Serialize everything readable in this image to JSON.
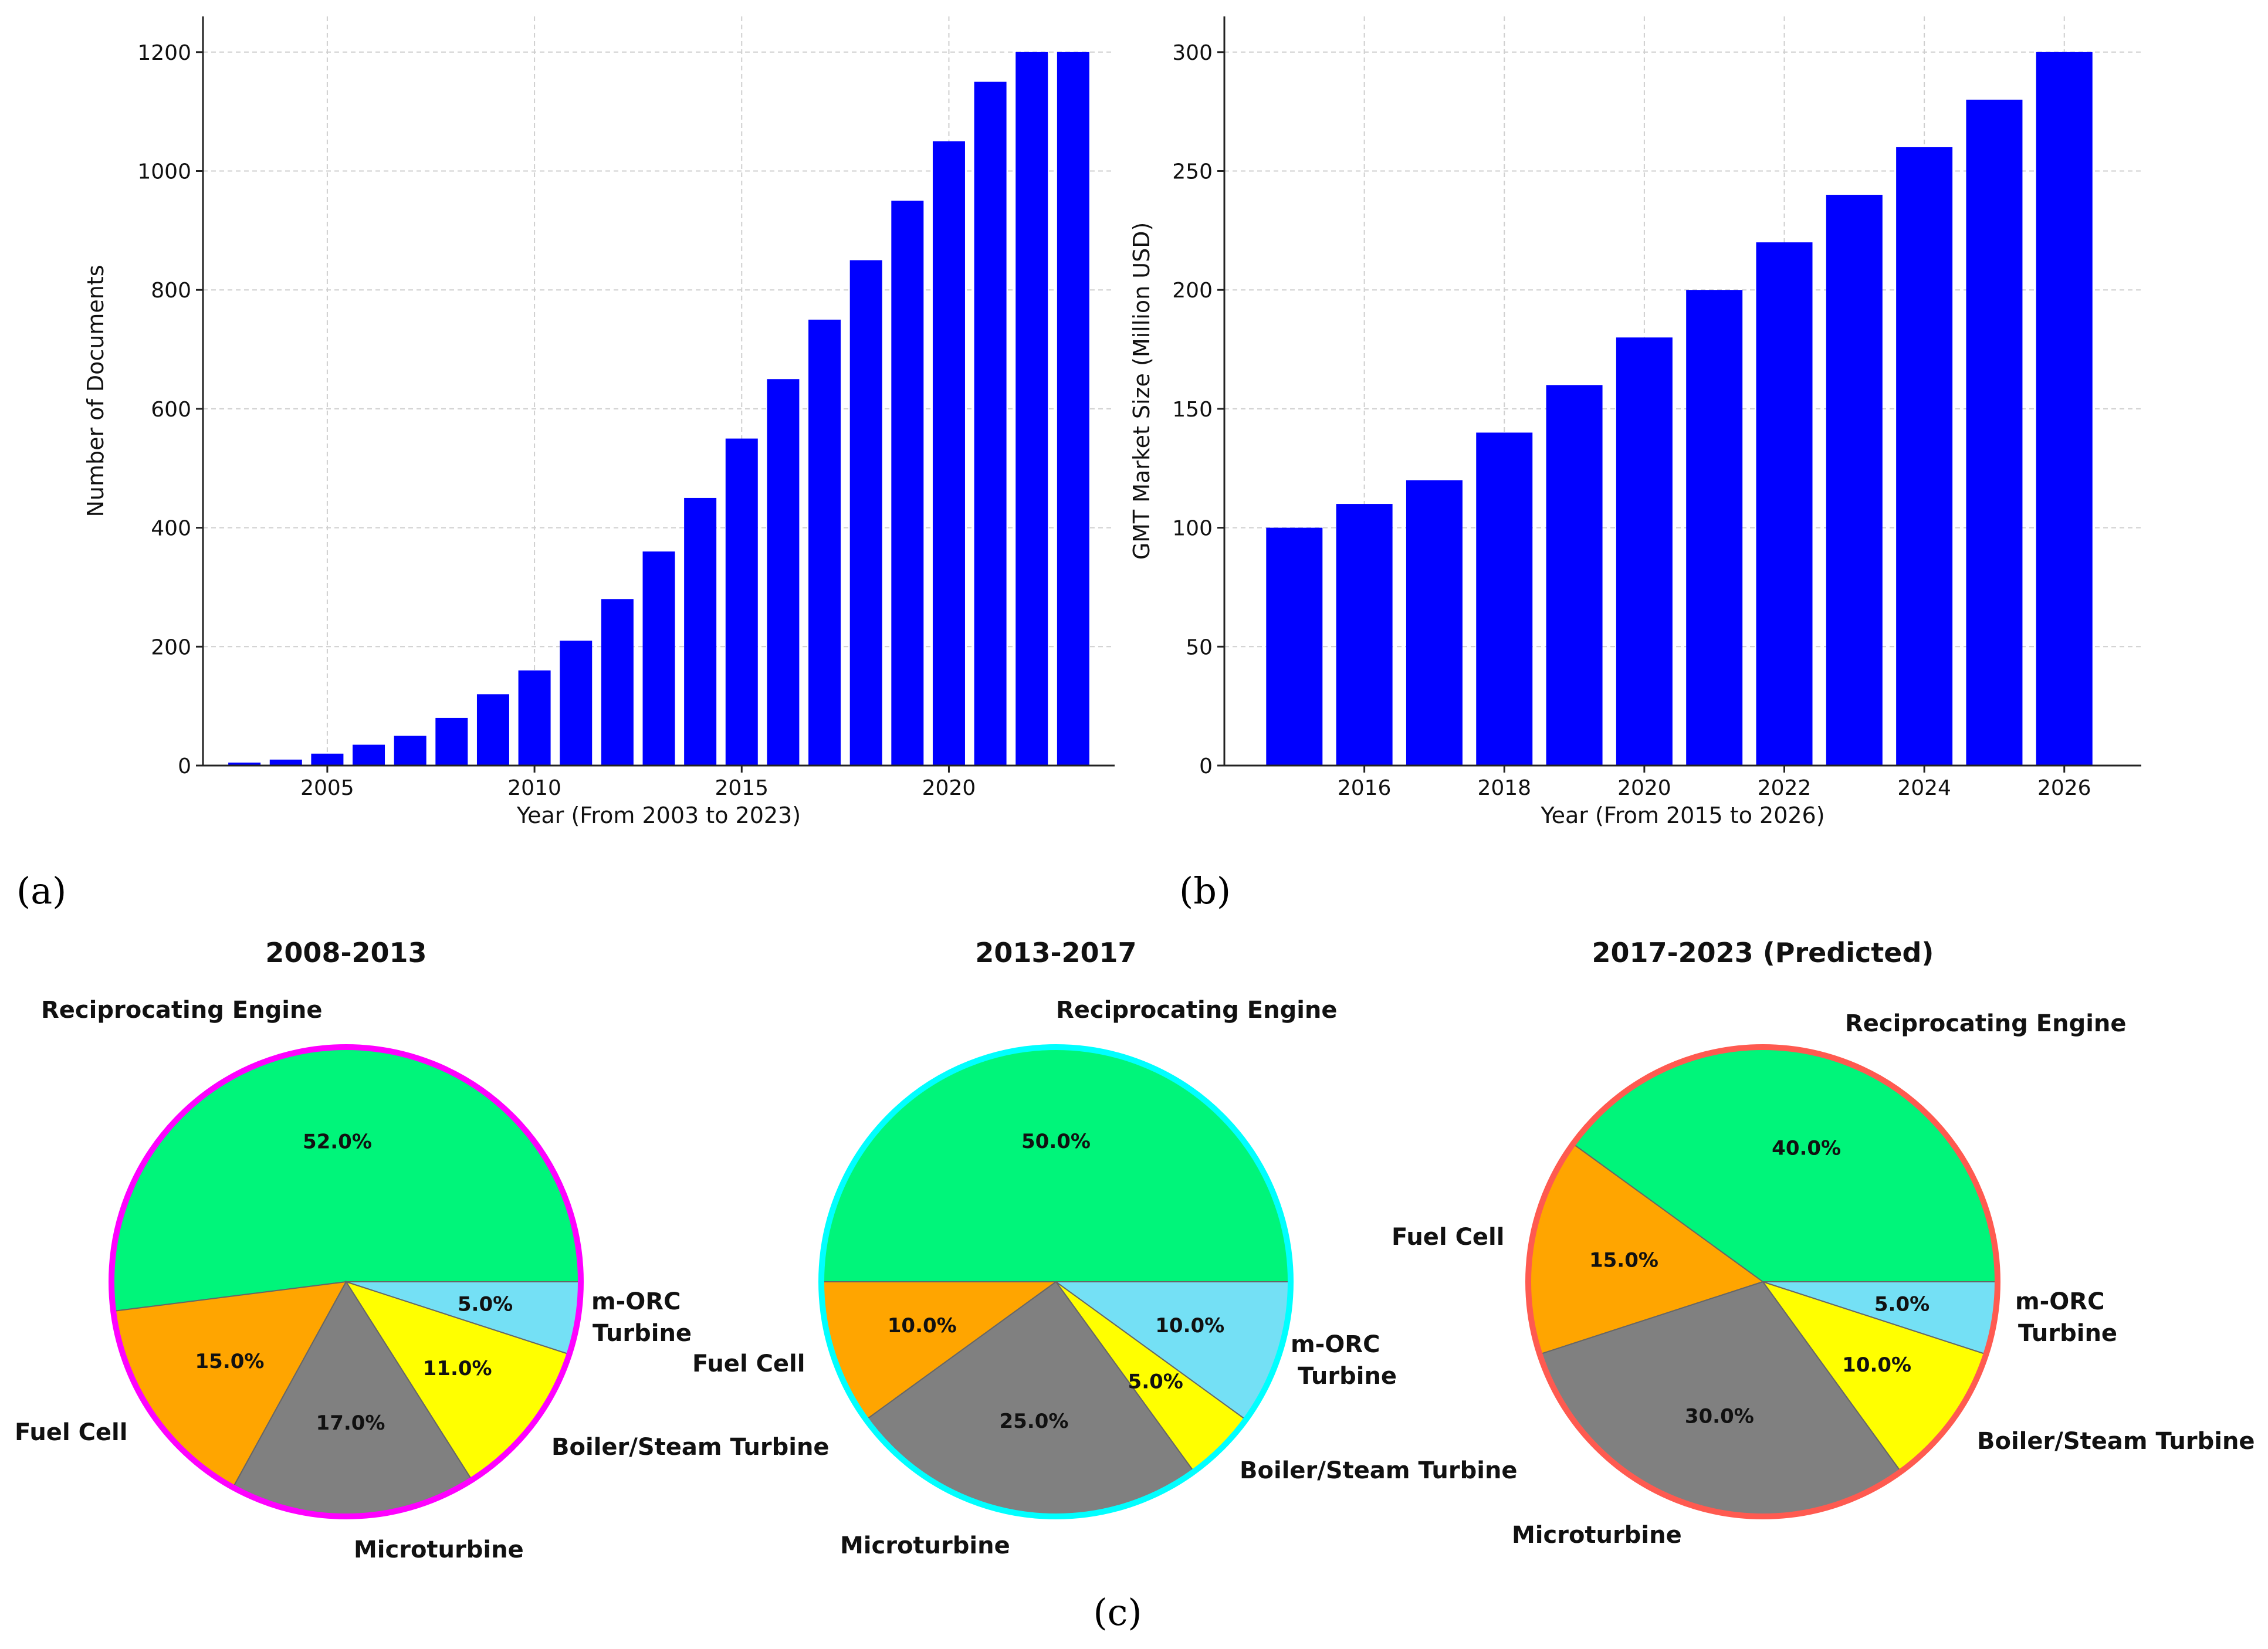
{
  "panel_labels": {
    "a": "(a)",
    "b": "(b)",
    "c": "(c)"
  },
  "colors": {
    "bar": "#0000ff",
    "reciprocating": "#00f57a",
    "fuel_cell": "#ffa500",
    "microturbine": "#808080",
    "boiler": "#ffff00",
    "morc": "#74e0f5",
    "ring_pie1": "#ff00ff",
    "ring_pie2": "#00ffff",
    "ring_pie3": "#ff5a50"
  },
  "chart_data": [
    {
      "id": "documents",
      "type": "bar",
      "title": "",
      "xlabel": "Year (From 2003 to 2023)",
      "ylabel": "Number of Documents",
      "x": [
        2003,
        2004,
        2005,
        2006,
        2007,
        2008,
        2009,
        2010,
        2011,
        2012,
        2013,
        2014,
        2015,
        2016,
        2017,
        2018,
        2019,
        2020,
        2021,
        2022,
        2023
      ],
      "values": [
        5,
        10,
        20,
        35,
        50,
        80,
        120,
        160,
        210,
        280,
        360,
        450,
        550,
        650,
        750,
        850,
        950,
        1050,
        1150,
        1200,
        1200
      ],
      "xticks": [
        2005,
        2010,
        2015,
        2020
      ],
      "yticks": [
        0,
        200,
        400,
        600,
        800,
        1000,
        1200
      ],
      "xlim": [
        2002.0,
        2024.0
      ],
      "ylim": [
        0,
        1260
      ],
      "grid": true
    },
    {
      "id": "market",
      "type": "bar",
      "title": "",
      "xlabel": "Year (From 2015 to 2026)",
      "ylabel": "GMT Market Size (Million USD)",
      "x": [
        2015,
        2016,
        2017,
        2018,
        2019,
        2020,
        2021,
        2022,
        2023,
        2024,
        2025,
        2026
      ],
      "values": [
        100,
        110,
        120,
        140,
        160,
        180,
        200,
        220,
        240,
        260,
        280,
        300
      ],
      "xticks": [
        2016,
        2018,
        2020,
        2022,
        2024,
        2026
      ],
      "yticks": [
        0,
        50,
        100,
        150,
        200,
        250,
        300
      ],
      "xlim": [
        2014.0,
        2027.1
      ],
      "ylim": [
        0,
        315
      ],
      "grid": true
    },
    {
      "id": "pie1",
      "type": "pie",
      "title": "2008-2013",
      "slices": [
        {
          "label": "Reciprocating Engine",
          "value": 52.0,
          "pct_label": "52.0%",
          "color": "#00f57a"
        },
        {
          "label": "Fuel Cell",
          "value": 15.0,
          "pct_label": "15.0%",
          "color": "#ffa500"
        },
        {
          "label": "Microturbine",
          "value": 17.0,
          "pct_label": "17.0%",
          "color": "#808080"
        },
        {
          "label": "Boiler/Steam Turbine",
          "value": 11.0,
          "pct_label": "11.0%",
          "color": "#ffff00"
        },
        {
          "label": "m-ORC Turbine",
          "value": 5.0,
          "pct_label": "5.0%",
          "color": "#74e0f5"
        }
      ]
    },
    {
      "id": "pie2",
      "type": "pie",
      "title": "2013-2017",
      "slices": [
        {
          "label": "Reciprocating Engine",
          "value": 50.0,
          "pct_label": "50.0%",
          "color": "#00f57a"
        },
        {
          "label": "Fuel Cell",
          "value": 10.0,
          "pct_label": "10.0%",
          "color": "#ffa500"
        },
        {
          "label": "Microturbine",
          "value": 25.0,
          "pct_label": "25.0%",
          "color": "#808080"
        },
        {
          "label": "Boiler/Steam Turbine",
          "value": 5.0,
          "pct_label": "5.0%",
          "color": "#ffff00"
        },
        {
          "label": "m-ORC Turbine",
          "value": 10.0,
          "pct_label": "10.0%",
          "color": "#74e0f5"
        }
      ]
    },
    {
      "id": "pie3",
      "type": "pie",
      "title": "2017-2023 (Predicted)",
      "slices": [
        {
          "label": "Reciprocating Engine",
          "value": 40.0,
          "pct_label": "40.0%",
          "color": "#00f57a"
        },
        {
          "label": "Fuel Cell",
          "value": 15.0,
          "pct_label": "15.0%",
          "color": "#ffa500"
        },
        {
          "label": "Microturbine",
          "value": 30.0,
          "pct_label": "30.0%",
          "color": "#808080"
        },
        {
          "label": "Boiler/Steam Turbine",
          "value": 10.0,
          "pct_label": "10.0%",
          "color": "#ffff00"
        },
        {
          "label": "m-ORC Turbine",
          "value": 5.0,
          "pct_label": "5.0%",
          "color": "#74e0f5"
        }
      ]
    }
  ]
}
